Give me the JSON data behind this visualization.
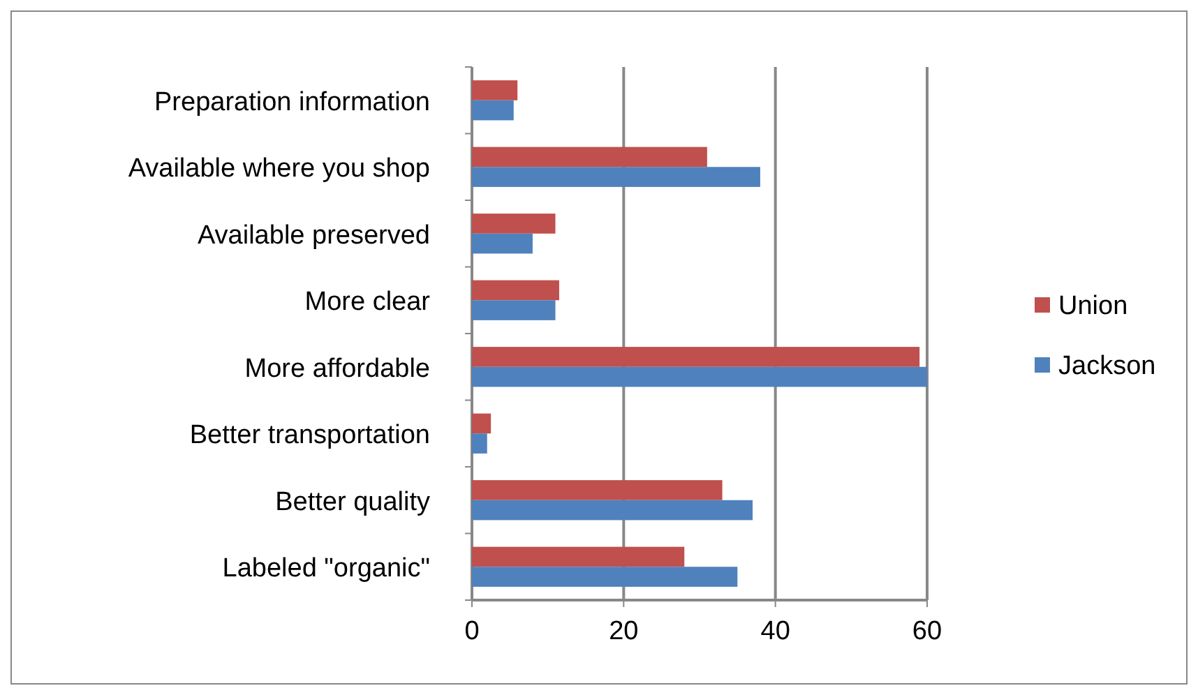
{
  "chart_data": {
    "type": "bar",
    "orientation": "horizontal",
    "categories": [
      "Preparation information",
      "Available where you shop",
      "Available preserved",
      "More clear",
      "More affordable",
      "Better transportation",
      "Better quality",
      "Labeled \"organic\""
    ],
    "series": [
      {
        "name": "Union",
        "color": "#c0504d",
        "values": [
          6,
          31,
          11,
          11.5,
          59,
          2.5,
          33,
          28
        ]
      },
      {
        "name": "Jackson",
        "color": "#4f81bd",
        "values": [
          5.5,
          38,
          8,
          11,
          60,
          2,
          37,
          35
        ]
      }
    ],
    "xlim": [
      0,
      60
    ],
    "xticks": [
      0,
      20,
      40,
      60
    ],
    "grid": "x",
    "legend": "right"
  }
}
